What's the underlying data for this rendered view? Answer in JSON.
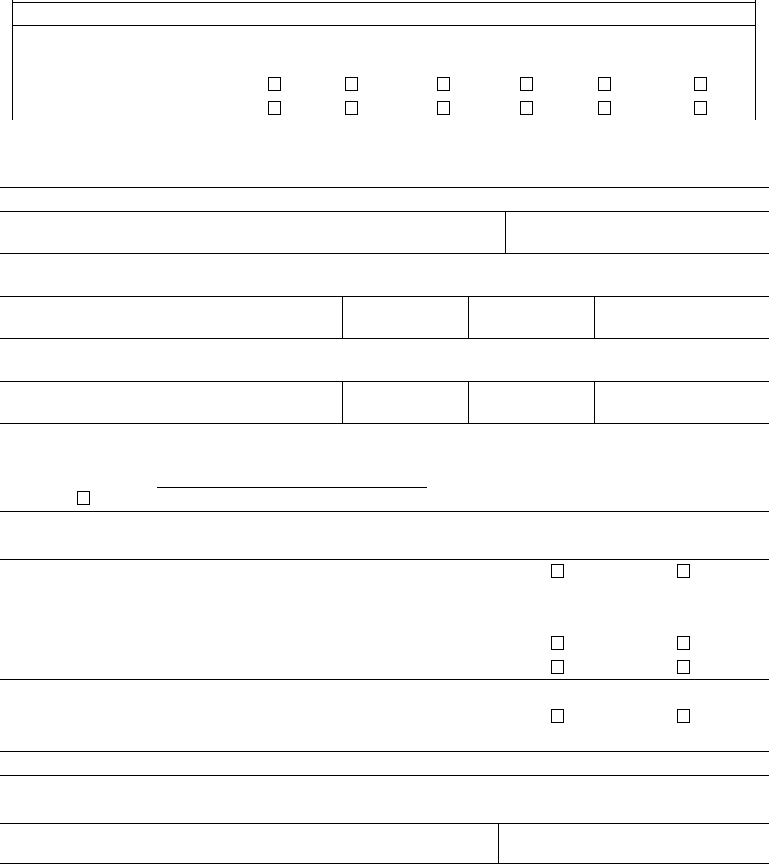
{
  "form": {
    "checkboxes": {
      "top_grid_row1": [
        false,
        false,
        false,
        false,
        false,
        false
      ],
      "top_grid_row2": [
        false,
        false,
        false,
        false,
        false,
        false
      ],
      "underline_option": false,
      "right_pair_1": [
        false,
        false
      ],
      "right_pair_2": [
        false,
        false
      ],
      "right_pair_3": [
        false,
        false
      ],
      "right_pair_4": [
        false,
        false
      ]
    },
    "line_color": "#000000",
    "background_color": "#ffffff"
  }
}
